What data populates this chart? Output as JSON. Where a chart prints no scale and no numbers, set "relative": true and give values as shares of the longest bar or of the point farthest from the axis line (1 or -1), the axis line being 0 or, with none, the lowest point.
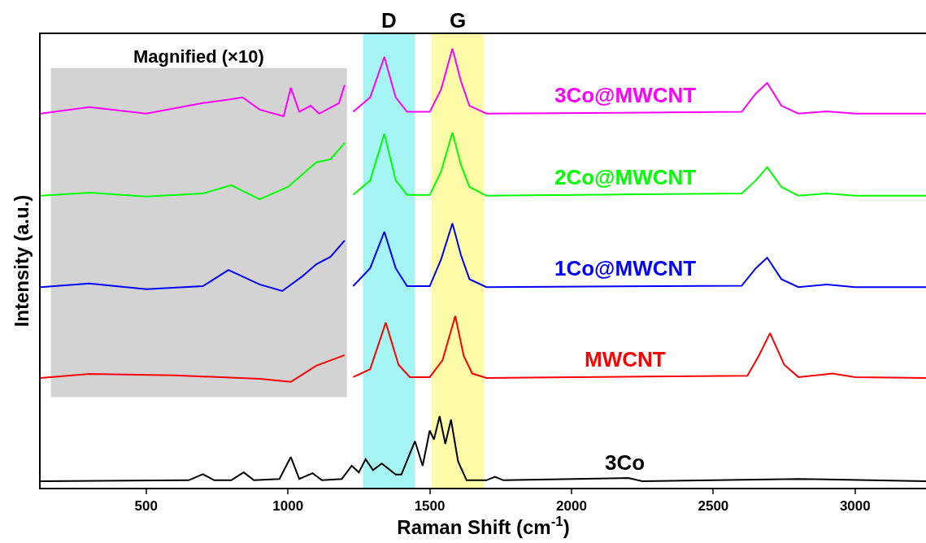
{
  "chart_data": {
    "type": "line",
    "relative": true,
    "xlabel": "Raman Shift (cm$^{-1}$)",
    "ylabel": "Intensity (a.u.)",
    "xlim": [
      128,
      3250
    ],
    "xticks": [
      500,
      1000,
      1500,
      2000,
      2500,
      3000
    ],
    "grid": false,
    "legend": false,
    "tick_labels": "x",
    "line_style": "solid",
    "marker": "none",
    "bands": [
      {
        "axis": "x",
        "from": 164,
        "to": 1208,
        "label": "Magnified (×10)",
        "color": "#d3d3d3"
      },
      {
        "axis": "x",
        "from": 1265,
        "to": 1448,
        "label": "D",
        "color": "#a6f5f5"
      },
      {
        "axis": "x",
        "from": 1506,
        "to": 1692,
        "label": "G",
        "color": "#fdfba8"
      }
    ],
    "series": [
      {
        "name": "3Co@MWCNT",
        "color": "#ff00ff",
        "x": [
          128,
          300,
          500,
          700,
          800,
          840,
          900,
          985,
          1010,
          1040,
          1080,
          1110,
          1180,
          1200,
          1220,
          1230,
          1290,
          1340,
          1380,
          1420,
          1500,
          1540,
          1580,
          1610,
          1640,
          1700,
          2600,
          2650,
          2690,
          2740,
          2800,
          2900,
          3000,
          3250
        ],
        "values": [
          0.852,
          0.867,
          0.852,
          0.876,
          0.885,
          0.889,
          0.861,
          0.846,
          0.911,
          0.856,
          0.87,
          0.852,
          0.876,
          0.917,
          null,
          0.856,
          0.889,
          0.981,
          0.889,
          0.856,
          0.856,
          0.907,
          1.0,
          0.926,
          0.87,
          0.852,
          0.856,
          0.898,
          0.922,
          0.87,
          0.852,
          0.857,
          0.852,
          0.852
        ]
      },
      {
        "name": "2Co@MWCNT",
        "color": "#00ff00",
        "x": [
          128,
          300,
          500,
          700,
          800,
          900,
          1000,
          1050,
          1100,
          1150,
          1200,
          1220,
          1230,
          1290,
          1340,
          1380,
          1420,
          1500,
          1540,
          1580,
          1610,
          1640,
          1700,
          2600,
          2650,
          2690,
          2740,
          2800,
          2900,
          3000,
          3250
        ],
        "values": [
          0.665,
          0.672,
          0.663,
          0.67,
          0.689,
          0.657,
          0.685,
          0.713,
          0.741,
          0.748,
          0.785,
          null,
          0.667,
          0.7,
          0.806,
          0.7,
          0.667,
          0.667,
          0.72,
          0.809,
          0.735,
          0.685,
          0.665,
          0.67,
          0.7,
          0.73,
          0.685,
          0.665,
          0.67,
          0.665,
          0.665
        ]
      },
      {
        "name": "1Co@MWCNT",
        "color": "#0000ff",
        "x": [
          128,
          300,
          500,
          700,
          790,
          900,
          980,
          1050,
          1100,
          1150,
          1200,
          1220,
          1230,
          1290,
          1340,
          1380,
          1420,
          1500,
          1540,
          1580,
          1610,
          1640,
          1700,
          2600,
          2650,
          2690,
          2740,
          2800,
          2900,
          3000,
          3250
        ],
        "values": [
          0.457,
          0.465,
          0.452,
          0.459,
          0.496,
          0.463,
          0.448,
          0.481,
          0.509,
          0.526,
          0.563,
          null,
          0.459,
          0.5,
          0.583,
          0.5,
          0.459,
          0.459,
          0.52,
          0.602,
          0.53,
          0.475,
          0.457,
          0.46,
          0.5,
          0.524,
          0.475,
          0.457,
          0.463,
          0.457,
          0.457
        ]
      },
      {
        "name": "MWCNT",
        "color": "#ff0000",
        "x": [
          128,
          300,
          600,
          900,
          1010,
          1100,
          1200,
          1220,
          1230,
          1290,
          1345,
          1390,
          1430,
          1500,
          1545,
          1590,
          1620,
          1650,
          1700,
          2620,
          2660,
          2700,
          2750,
          2800,
          2920,
          3000,
          3250
        ],
        "values": [
          0.25,
          0.259,
          0.256,
          0.248,
          0.241,
          0.278,
          0.302,
          null,
          0.252,
          0.27,
          0.376,
          0.28,
          0.252,
          0.252,
          0.29,
          0.391,
          0.3,
          0.26,
          0.25,
          0.255,
          0.3,
          0.352,
          0.28,
          0.252,
          0.26,
          0.252,
          0.25
        ]
      },
      {
        "name": "3Co",
        "color": "#000000",
        "x": [
          128,
          650,
          700,
          740,
          800,
          844,
          880,
          970,
          1010,
          1040,
          1087,
          1120,
          1190,
          1225,
          1250,
          1274,
          1300,
          1331,
          1380,
          1400,
          1448,
          1475,
          1500,
          1515,
          1535,
          1555,
          1575,
          1600,
          1630,
          1700,
          1730,
          1760,
          2200,
          2250,
          2800,
          3250
        ],
        "values": [
          0.015,
          0.017,
          0.031,
          0.017,
          0.017,
          0.035,
          0.017,
          0.02,
          0.07,
          0.02,
          0.033,
          0.017,
          0.02,
          0.05,
          0.035,
          0.065,
          0.04,
          0.055,
          0.03,
          0.03,
          0.106,
          0.05,
          0.13,
          0.11,
          0.163,
          0.1,
          0.155,
          0.06,
          0.017,
          0.017,
          0.025,
          0.017,
          0.022,
          0.015,
          0.02,
          0.015
        ]
      }
    ]
  }
}
